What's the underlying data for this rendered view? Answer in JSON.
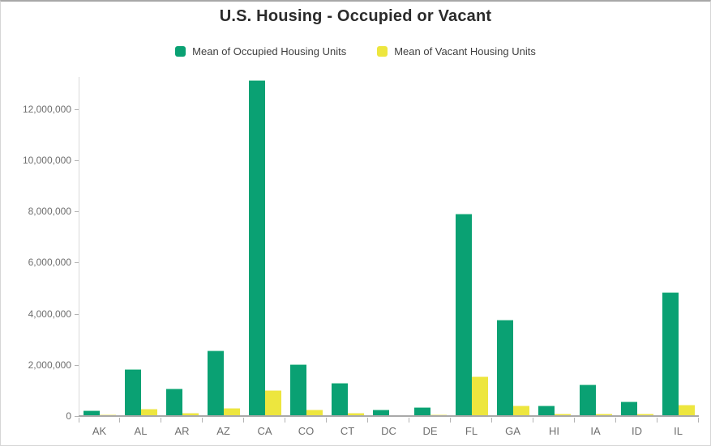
{
  "title": "U.S. Housing - Occupied or Vacant",
  "legend": {
    "items": [
      {
        "label": "Mean of Occupied Housing Units",
        "color": "#0aa173"
      },
      {
        "label": "Mean of Vacant Housing Units",
        "color": "#ede63e"
      }
    ]
  },
  "chart_data": {
    "type": "bar",
    "title": "U.S. Housing - Occupied or Vacant",
    "categories": [
      "AK",
      "AL",
      "AR",
      "AZ",
      "CA",
      "CO",
      "CT",
      "DC",
      "DE",
      "FL",
      "GA",
      "HI",
      "IA",
      "ID",
      "IL"
    ],
    "series": [
      {
        "name": "Mean of Occupied Housing Units",
        "color": "#0aa173",
        "border_color": "#93dabf",
        "values": [
          230000,
          1830000,
          1090000,
          2570000,
          13150000,
          2020000,
          1310000,
          270000,
          350000,
          7920000,
          3780000,
          400000,
          1220000,
          570000,
          4830000
        ]
      },
      {
        "name": "Mean of Vacant Housing Units",
        "color": "#ede63e",
        "border_color": "#f6f1a8",
        "values": [
          50000,
          290000,
          130000,
          330000,
          1030000,
          240000,
          120000,
          30000,
          60000,
          1550000,
          410000,
          90000,
          90000,
          90000,
          460000
        ]
      }
    ],
    "xlabel": "",
    "ylabel": "",
    "ylim": [
      0,
      13350000
    ],
    "yticks": [
      0,
      2000000,
      4000000,
      6000000,
      8000000,
      10000000,
      12000000
    ],
    "ytick_labels": [
      "0",
      "2,000,000",
      "4,000,000",
      "6,000,000",
      "8,000,000",
      "10,000,000",
      "12,000,000"
    ],
    "grid": false,
    "legend_position": "top"
  },
  "colors": {
    "occupied": "#0aa173",
    "vacant": "#ede63e",
    "axis_line": "#a9a9a9",
    "tick": "#b3b3b3",
    "axis_text": "#6e6e6e",
    "title_text": "#2b2b2b"
  }
}
